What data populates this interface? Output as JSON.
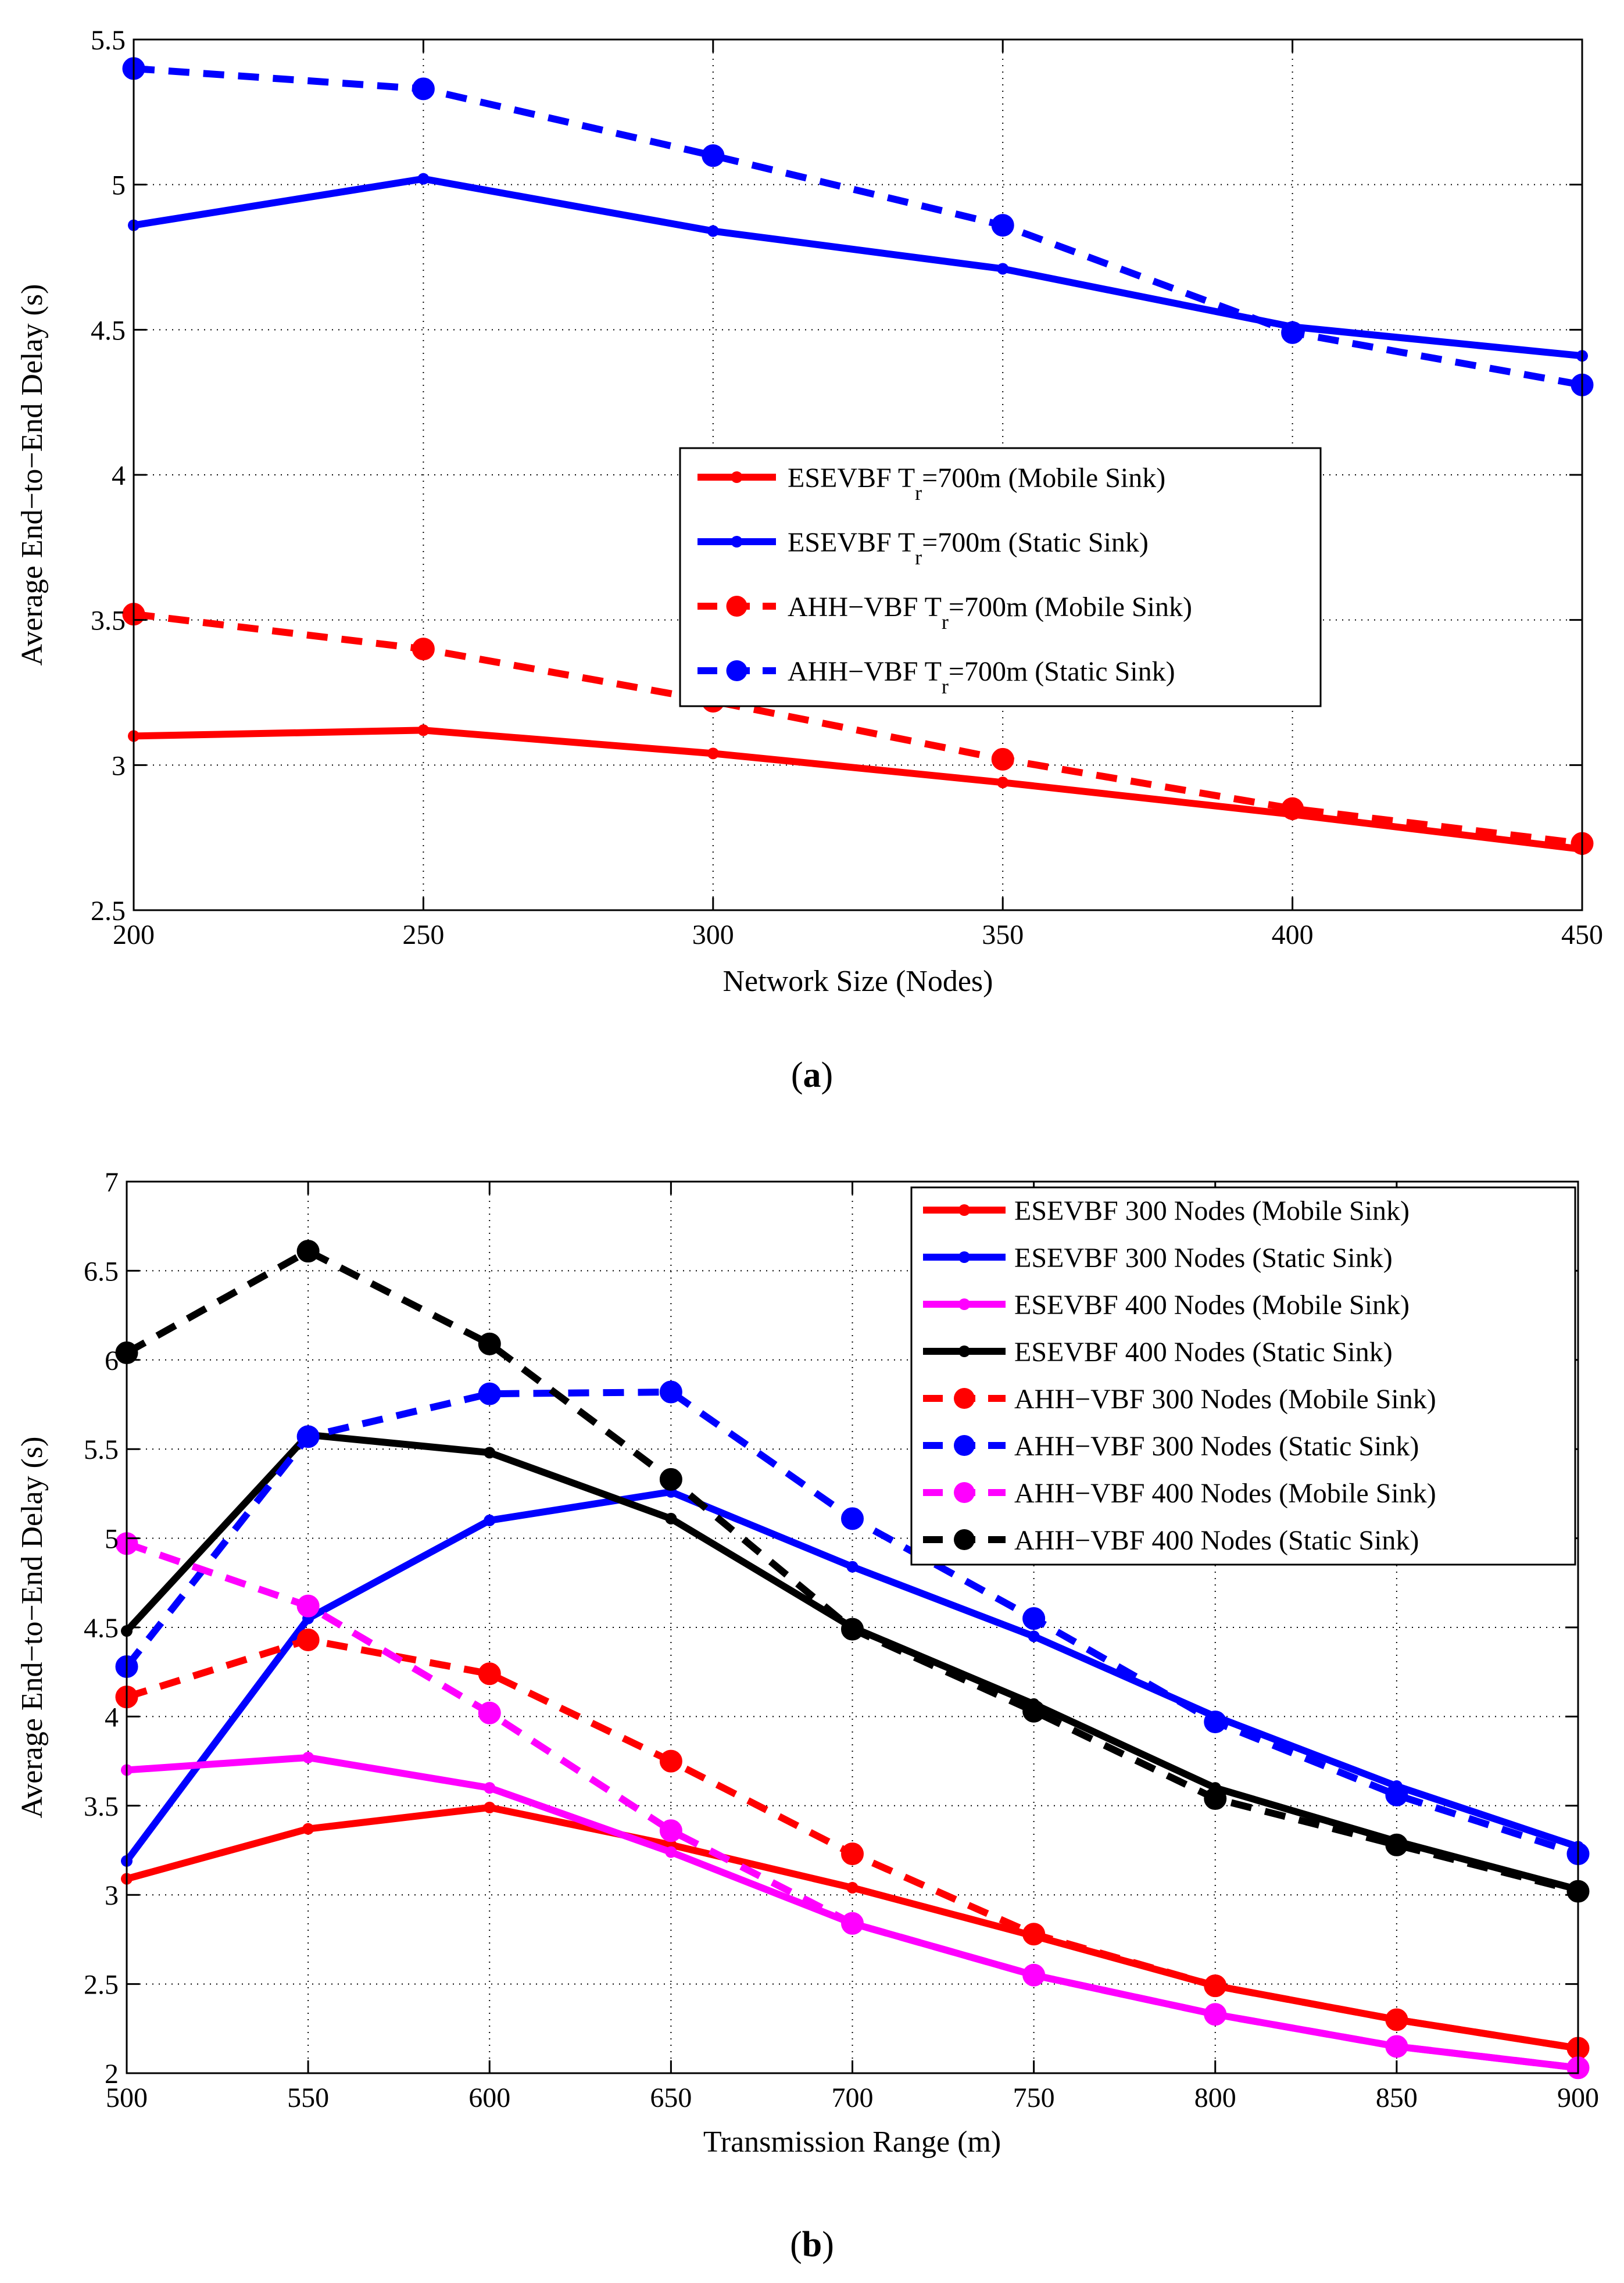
{
  "chart_data": [
    {
      "type": "line",
      "caption_letter": "a",
      "title": "",
      "xlabel": "Network Size (Nodes)",
      "ylabel": "Average End−to−End Delay (s)",
      "xlim": [
        200,
        450
      ],
      "ylim": [
        2.5,
        5.5
      ],
      "xticks": [
        200,
        250,
        300,
        350,
        400,
        450
      ],
      "yticks": [
        2.5,
        3,
        3.5,
        4,
        4.5,
        5,
        5.5
      ],
      "ytick_labels": [
        "2.5",
        "3",
        "3.5",
        "4",
        "4.5",
        "5",
        "5.5"
      ],
      "grid": true,
      "legend_position": "center-right",
      "x": [
        200,
        250,
        300,
        350,
        400,
        450
      ],
      "series": [
        {
          "name": "ESEVBF T_r=700m (Mobile Sink)",
          "legend_main": "ESEVBF T",
          "legend_sub": "r",
          "legend_rest": "=700m (Mobile Sink)",
          "color": "#ff0000",
          "dash": false,
          "marker": "small",
          "values": [
            3.1,
            3.12,
            3.04,
            2.94,
            2.83,
            2.71
          ]
        },
        {
          "name": "ESEVBF T_r=700m (Static Sink)",
          "legend_main": "ESEVBF T",
          "legend_sub": "r",
          "legend_rest": "=700m (Static Sink)",
          "color": "#0000ff",
          "dash": false,
          "marker": "small",
          "values": [
            4.86,
            5.02,
            4.84,
            4.71,
            4.51,
            4.41
          ]
        },
        {
          "name": "AHH-VBF T_r=700m (Mobile Sink)",
          "legend_main": "AHH−VBF T",
          "legend_sub": "r",
          "legend_rest": "=700m (Mobile Sink)",
          "color": "#ff0000",
          "dash": true,
          "marker": "large",
          "values": [
            3.52,
            3.4,
            3.22,
            3.02,
            2.85,
            2.73
          ]
        },
        {
          "name": "AHH-VBF T_r=700m (Static Sink)",
          "legend_main": "AHH−VBF T",
          "legend_sub": "r",
          "legend_rest": "=700m (Static Sink)",
          "color": "#0000ff",
          "dash": true,
          "marker": "large",
          "values": [
            5.4,
            5.33,
            5.1,
            4.86,
            4.49,
            4.31
          ]
        }
      ]
    },
    {
      "type": "line",
      "caption_letter": "b",
      "title": "",
      "xlabel": "Transmission Range (m)",
      "ylabel": "Average End−to−End Delay (s)",
      "xlim": [
        500,
        900
      ],
      "ylim": [
        2,
        7
      ],
      "xticks": [
        500,
        550,
        600,
        650,
        700,
        750,
        800,
        850,
        900
      ],
      "yticks": [
        2,
        2.5,
        3,
        3.5,
        4,
        4.5,
        5,
        5.5,
        6,
        6.5,
        7
      ],
      "ytick_labels": [
        "2",
        "2.5",
        "3",
        "3.5",
        "4",
        "4.5",
        "5",
        "5.5",
        "6",
        "6.5",
        "7"
      ],
      "grid": true,
      "legend_position": "top-right",
      "x": [
        500,
        550,
        600,
        650,
        700,
        750,
        800,
        850,
        900
      ],
      "series": [
        {
          "name": "ESEVBF 300 Nodes (Mobile Sink)",
          "legend_main": "ESEVBF 300 Nodes (Mobile Sink)",
          "color": "#ff0000",
          "dash": false,
          "marker": "small",
          "values": [
            3.09,
            3.37,
            3.49,
            3.28,
            3.04,
            2.77,
            2.49,
            2.3,
            2.14
          ]
        },
        {
          "name": "ESEVBF 300 Nodes (Static Sink)",
          "legend_main": "ESEVBF 300 Nodes (Static Sink)",
          "color": "#0000ff",
          "dash": false,
          "marker": "small",
          "values": [
            3.19,
            4.55,
            5.1,
            5.26,
            4.84,
            4.45,
            4.0,
            3.61,
            3.27
          ]
        },
        {
          "name": "ESEVBF 400 Nodes (Mobile Sink)",
          "legend_main": "ESEVBF 400 Nodes (Mobile Sink)",
          "color": "#ff00ff",
          "dash": false,
          "marker": "small",
          "values": [
            3.7,
            3.77,
            3.6,
            3.24,
            2.84,
            2.55,
            2.33,
            2.15,
            2.03
          ]
        },
        {
          "name": "ESEVBF 400 Nodes (Static Sink)",
          "legend_main": "ESEVBF 400 Nodes (Static Sink)",
          "color": "#000000",
          "dash": false,
          "marker": "small",
          "values": [
            4.48,
            5.58,
            5.48,
            5.11,
            4.5,
            4.07,
            3.6,
            3.3,
            3.03
          ]
        },
        {
          "name": "AHH-VBF 300 Nodes (Mobile Sink)",
          "legend_main": "AHH−VBF 300 Nodes (Mobile Sink)",
          "color": "#ff0000",
          "dash": true,
          "marker": "large",
          "values": [
            4.11,
            4.43,
            4.24,
            3.75,
            3.23,
            2.78,
            2.49,
            2.3,
            2.14
          ]
        },
        {
          "name": "AHH-VBF 300 Nodes (Static Sink)",
          "legend_main": "AHH−VBF 300 Nodes (Static Sink)",
          "color": "#0000ff",
          "dash": true,
          "marker": "large",
          "values": [
            4.28,
            5.57,
            5.81,
            5.82,
            5.11,
            4.55,
            3.97,
            3.56,
            3.23
          ]
        },
        {
          "name": "AHH-VBF 400 Nodes (Mobile Sink)",
          "legend_main": "AHH−VBF 400 Nodes (Mobile Sink)",
          "color": "#ff00ff",
          "dash": true,
          "marker": "large",
          "values": [
            4.97,
            4.62,
            4.02,
            3.36,
            2.84,
            2.55,
            2.33,
            2.15,
            2.03
          ]
        },
        {
          "name": "AHH-VBF 400 Nodes (Static Sink)",
          "legend_main": "AHH−VBF 400 Nodes (Static Sink)",
          "color": "#000000",
          "dash": true,
          "marker": "large",
          "values": [
            6.04,
            6.61,
            6.09,
            5.33,
            4.49,
            4.03,
            3.54,
            3.28,
            3.02
          ]
        }
      ]
    }
  ]
}
